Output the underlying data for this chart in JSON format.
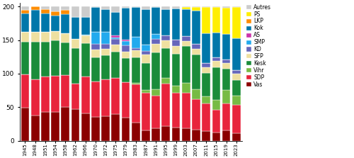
{
  "years": [
    1945,
    1948,
    1951,
    1954,
    1958,
    1962,
    1966,
    1970,
    1972,
    1975,
    1979,
    1983,
    1987,
    1991,
    1995,
    1999,
    2003,
    2007,
    2011,
    2015,
    2019,
    2023
  ],
  "parties": [
    "Vas",
    "SDP",
    "Vihr",
    "Kesk",
    "SFP",
    "KD",
    "SMP",
    "AS",
    "Kok",
    "LKP",
    "PS",
    "Autres"
  ],
  "colors": [
    "#8B0000",
    "#E8243C",
    "#77BB44",
    "#1A8C3A",
    "#EEE0A0",
    "#6666BB",
    "#22AAEE",
    "#CC33AA",
    "#0077AA",
    "#FF8C00",
    "#FFEE00",
    "#CCCCCC"
  ],
  "data": {
    "Vas": [
      49,
      38,
      43,
      43,
      50,
      47,
      41,
      36,
      37,
      40,
      35,
      27,
      16,
      19,
      22,
      20,
      19,
      17,
      14,
      12,
      16,
      11
    ],
    "SDP": [
      50,
      54,
      53,
      54,
      48,
      38,
      55,
      52,
      55,
      54,
      52,
      57,
      56,
      48,
      63,
      51,
      53,
      45,
      42,
      34,
      40,
      43
    ],
    "Vihr": [
      0,
      0,
      0,
      0,
      0,
      0,
      0,
      0,
      0,
      0,
      0,
      2,
      4,
      10,
      9,
      11,
      14,
      15,
      10,
      15,
      20,
      13
    ],
    "Kesk": [
      49,
      56,
      51,
      53,
      48,
      53,
      49,
      36,
      35,
      39,
      36,
      38,
      40,
      55,
      44,
      48,
      55,
      51,
      35,
      49,
      31,
      23
    ],
    "SFP": [
      14,
      14,
      15,
      13,
      14,
      14,
      12,
      12,
      10,
      10,
      10,
      11,
      13,
      12,
      12,
      11,
      8,
      9,
      9,
      9,
      9,
      10
    ],
    "KD": [
      0,
      0,
      0,
      0,
      0,
      0,
      0,
      8,
      7,
      9,
      9,
      3,
      5,
      8,
      7,
      10,
      7,
      7,
      6,
      5,
      5,
      5
    ],
    "SMP": [
      0,
      0,
      0,
      0,
      0,
      0,
      1,
      18,
      18,
      2,
      7,
      17,
      9,
      7,
      0,
      0,
      0,
      0,
      0,
      0,
      0,
      0
    ],
    "AS": [
      0,
      0,
      0,
      0,
      0,
      0,
      0,
      0,
      0,
      3,
      2,
      0,
      0,
      0,
      0,
      0,
      0,
      0,
      0,
      0,
      0,
      0
    ],
    "Kok": [
      28,
      33,
      28,
      24,
      29,
      32,
      26,
      37,
      34,
      35,
      47,
      44,
      53,
      40,
      39,
      46,
      40,
      50,
      44,
      37,
      38,
      48
    ],
    "LKP": [
      5,
      5,
      6,
      6,
      6,
      0,
      0,
      0,
      0,
      0,
      0,
      0,
      0,
      0,
      0,
      0,
      0,
      0,
      0,
      0,
      0,
      0
    ],
    "PS": [
      0,
      0,
      0,
      0,
      0,
      0,
      0,
      0,
      0,
      0,
      0,
      0,
      0,
      0,
      0,
      0,
      3,
      5,
      39,
      38,
      39,
      46
    ],
    "Autres": [
      5,
      0,
      4,
      7,
      5,
      16,
      16,
      1,
      4,
      8,
      2,
      1,
      4,
      1,
      4,
      3,
      1,
      1,
      1,
      1,
      2,
      1
    ]
  },
  "ylim": [
    0,
    205
  ],
  "yticks": [
    0,
    50,
    100,
    150,
    200
  ],
  "legend_order": [
    "Autres",
    "PS",
    "LKP",
    "Kok",
    "AS",
    "SMP",
    "KD",
    "SFP",
    "Kesk",
    "Vihr",
    "SDP",
    "Vas"
  ]
}
